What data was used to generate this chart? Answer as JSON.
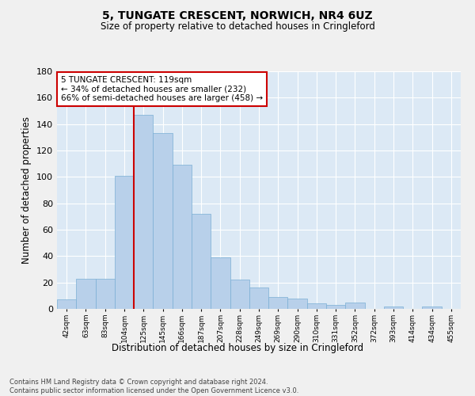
{
  "title": "5, TUNGATE CRESCENT, NORWICH, NR4 6UZ",
  "subtitle": "Size of property relative to detached houses in Cringleford",
  "xlabel": "Distribution of detached houses by size in Cringleford",
  "ylabel": "Number of detached properties",
  "bar_labels": [
    "42sqm",
    "63sqm",
    "83sqm",
    "104sqm",
    "125sqm",
    "145sqm",
    "166sqm",
    "187sqm",
    "207sqm",
    "228sqm",
    "249sqm",
    "269sqm",
    "290sqm",
    "310sqm",
    "331sqm",
    "352sqm",
    "372sqm",
    "393sqm",
    "414sqm",
    "434sqm",
    "455sqm"
  ],
  "bar_values": [
    7,
    23,
    23,
    101,
    147,
    133,
    109,
    72,
    39,
    22,
    16,
    9,
    8,
    4,
    3,
    5,
    0,
    2,
    0,
    2,
    0
  ],
  "bar_color": "#b8d0ea",
  "bar_edgecolor": "#7aafd4",
  "bg_color": "#dce9f5",
  "grid_color": "#ffffff",
  "vline_color": "#cc0000",
  "annotation_box_color": "#ffffff",
  "annotation_box_edgecolor": "#cc0000",
  "ylim": [
    0,
    180
  ],
  "footnote": "Contains HM Land Registry data © Crown copyright and database right 2024.\nContains public sector information licensed under the Open Government Licence v3.0."
}
